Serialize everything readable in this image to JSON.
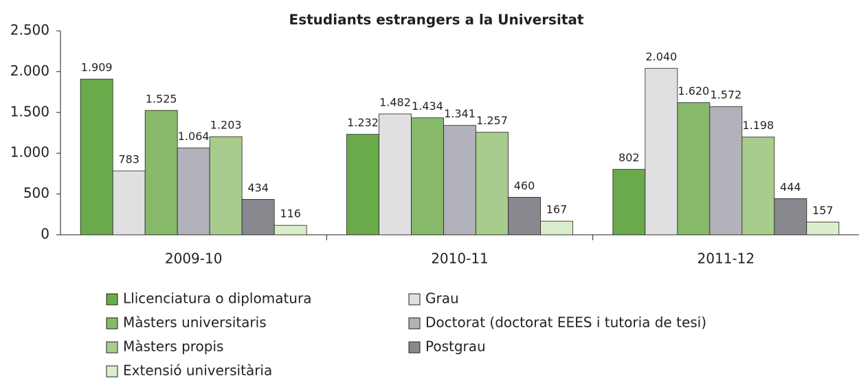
{
  "chart_data": {
    "type": "bar",
    "title": "Estudiants estrangers a la Universitat",
    "categories": [
      "2009-10",
      "2010-11",
      "2011-12"
    ],
    "series": [
      {
        "name": "Llicenciatura o diplomatura",
        "color": "#6aaa4a",
        "values": [
          1909,
          1232,
          802
        ],
        "value_labels": [
          "1.909",
          "1.232",
          "802"
        ]
      },
      {
        "name": "Grau",
        "color": "#e0e0e2",
        "values": [
          783,
          1482,
          2040
        ],
        "value_labels": [
          "783",
          "1.482",
          "2.040"
        ]
      },
      {
        "name": "Màsters universitaris",
        "color": "#86b96a",
        "values": [
          1525,
          1434,
          1620
        ],
        "value_labels": [
          "1.525",
          "1.434",
          "1.620"
        ]
      },
      {
        "name": "Doctorat (doctorat EEES i tutoria de tesi)",
        "color": "#b2b2ba",
        "values": [
          1064,
          1341,
          1572
        ],
        "value_labels": [
          "1.064",
          "1.341",
          "1.572"
        ]
      },
      {
        "name": "Màsters propis",
        "color": "#a7cc8d",
        "values": [
          1203,
          1257,
          1198
        ],
        "value_labels": [
          "1.203",
          "1.257",
          "1.198"
        ]
      },
      {
        "name": "Postgrau",
        "color": "#88888f",
        "values": [
          434,
          460,
          444
        ],
        "value_labels": [
          "434",
          "460",
          "444"
        ]
      },
      {
        "name": "Extensió universitària",
        "color": "#dbeecb",
        "values": [
          116,
          167,
          157
        ],
        "value_labels": [
          "116",
          "167",
          "157"
        ]
      }
    ],
    "ylim": [
      0,
      2500
    ],
    "yticks": [
      0,
      500,
      {
        "value": 1000,
        "label": "1.000"
      },
      {
        "value": 1500,
        "label": "1.500"
      },
      {
        "value": 2000,
        "label": "2.000"
      },
      {
        "value": 2500,
        "label": "2.500"
      }
    ]
  }
}
